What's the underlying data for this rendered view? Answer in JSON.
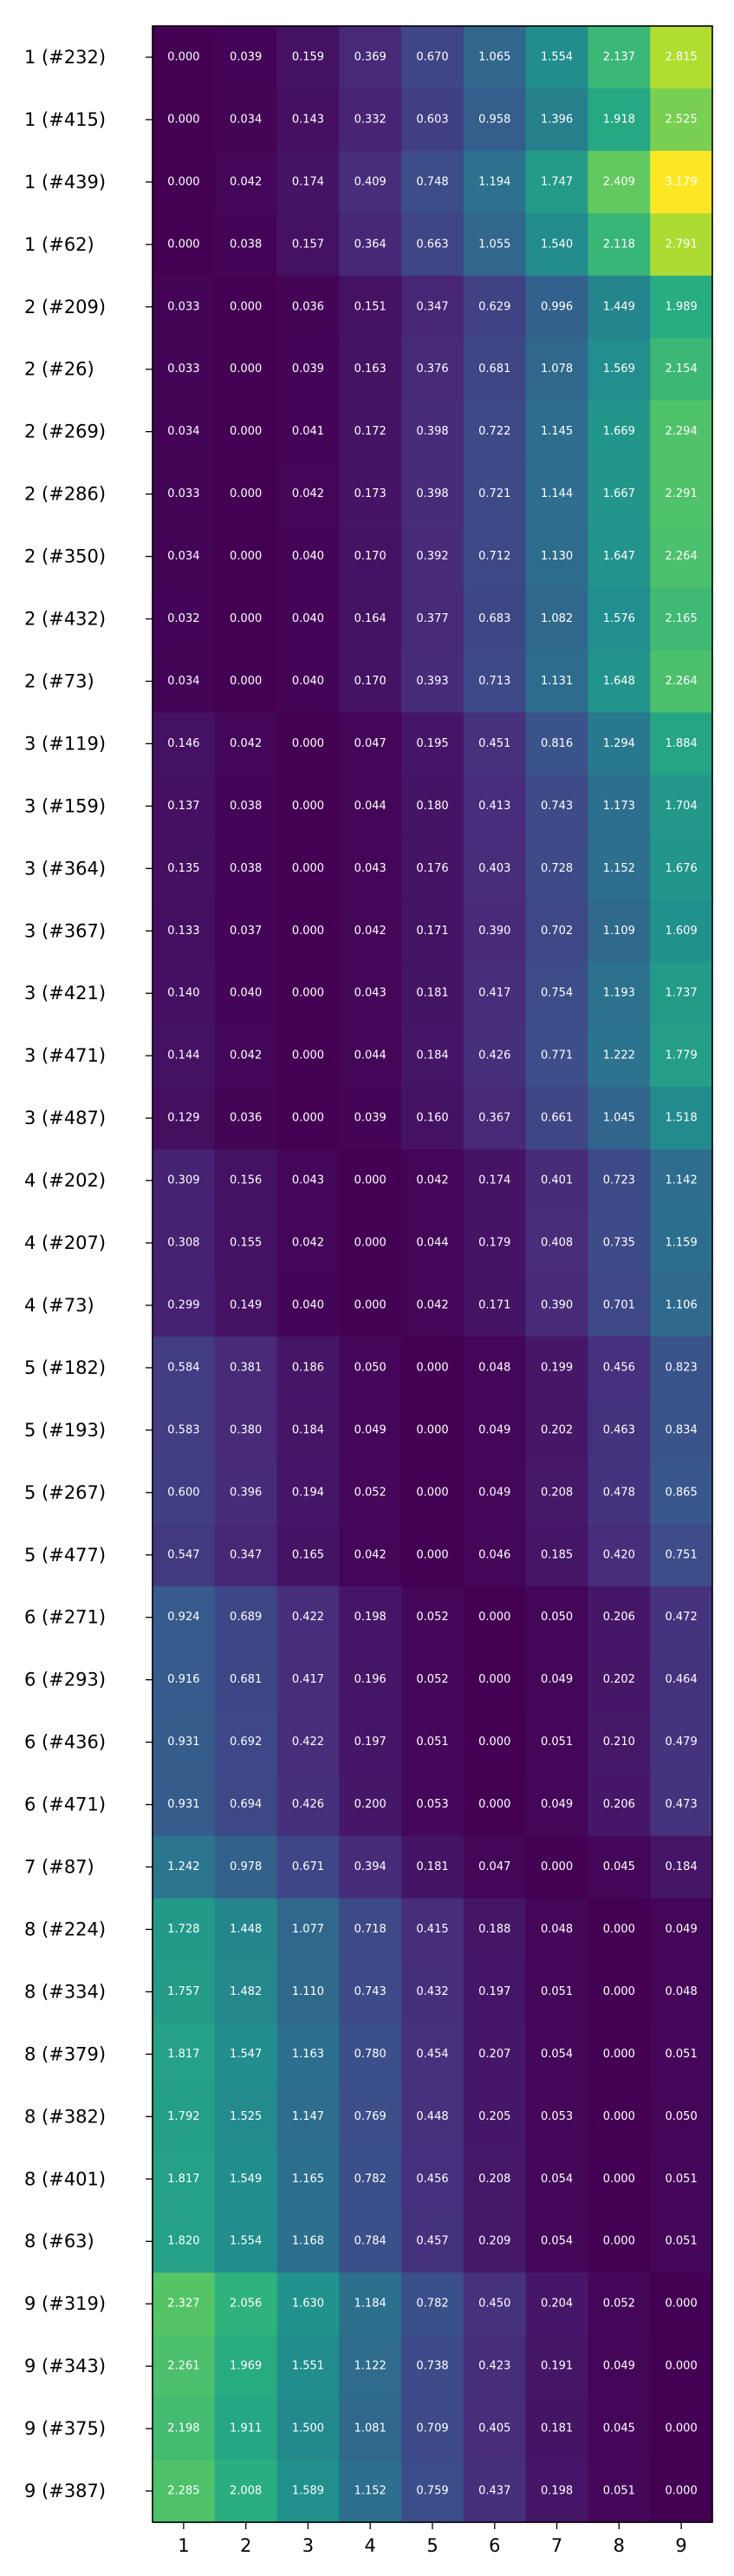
{
  "chart_data": {
    "type": "heatmap",
    "title": "",
    "xlabel": "",
    "ylabel": "",
    "colormap": "viridis",
    "vmin": 0.0,
    "vmax": 3.179,
    "x_categories": [
      "1",
      "2",
      "3",
      "4",
      "5",
      "6",
      "7",
      "8",
      "9"
    ],
    "y_categories": [
      "1 (#232)",
      "1 (#415)",
      "1 (#439)",
      "1 (#62)",
      "2 (#209)",
      "2 (#26)",
      "2 (#269)",
      "2 (#286)",
      "2 (#350)",
      "2 (#432)",
      "2 (#73)",
      "3 (#119)",
      "3 (#159)",
      "3 (#364)",
      "3 (#367)",
      "3 (#421)",
      "3 (#471)",
      "3 (#487)",
      "4 (#202)",
      "4 (#207)",
      "4 (#73)",
      "5 (#182)",
      "5 (#193)",
      "5 (#267)",
      "5 (#477)",
      "6 (#271)",
      "6 (#293)",
      "6 (#436)",
      "6 (#471)",
      "7 (#87)",
      "8 (#224)",
      "8 (#334)",
      "8 (#379)",
      "8 (#382)",
      "8 (#401)",
      "8 (#63)",
      "9 (#319)",
      "9 (#343)",
      "9 (#375)",
      "9 (#387)"
    ],
    "values": [
      [
        0.0,
        0.039,
        0.159,
        0.369,
        0.67,
        1.065,
        1.554,
        2.137,
        2.815
      ],
      [
        0.0,
        0.034,
        0.143,
        0.332,
        0.603,
        0.958,
        1.396,
        1.918,
        2.525
      ],
      [
        0.0,
        0.042,
        0.174,
        0.409,
        0.748,
        1.194,
        1.747,
        2.409,
        3.179
      ],
      [
        0.0,
        0.038,
        0.157,
        0.364,
        0.663,
        1.055,
        1.54,
        2.118,
        2.791
      ],
      [
        0.033,
        0.0,
        0.036,
        0.151,
        0.347,
        0.629,
        0.996,
        1.449,
        1.989
      ],
      [
        0.033,
        0.0,
        0.039,
        0.163,
        0.376,
        0.681,
        1.078,
        1.569,
        2.154
      ],
      [
        0.034,
        0.0,
        0.041,
        0.172,
        0.398,
        0.722,
        1.145,
        1.669,
        2.294
      ],
      [
        0.033,
        0.0,
        0.042,
        0.173,
        0.398,
        0.721,
        1.144,
        1.667,
        2.291
      ],
      [
        0.034,
        0.0,
        0.04,
        0.17,
        0.392,
        0.712,
        1.13,
        1.647,
        2.264
      ],
      [
        0.032,
        0.0,
        0.04,
        0.164,
        0.377,
        0.683,
        1.082,
        1.576,
        2.165
      ],
      [
        0.034,
        0.0,
        0.04,
        0.17,
        0.393,
        0.713,
        1.131,
        1.648,
        2.264
      ],
      [
        0.146,
        0.042,
        0.0,
        0.047,
        0.195,
        0.451,
        0.816,
        1.294,
        1.884
      ],
      [
        0.137,
        0.038,
        0.0,
        0.044,
        0.18,
        0.413,
        0.743,
        1.173,
        1.704
      ],
      [
        0.135,
        0.038,
        0.0,
        0.043,
        0.176,
        0.403,
        0.728,
        1.152,
        1.676
      ],
      [
        0.133,
        0.037,
        0.0,
        0.042,
        0.171,
        0.39,
        0.702,
        1.109,
        1.609
      ],
      [
        0.14,
        0.04,
        0.0,
        0.043,
        0.181,
        0.417,
        0.754,
        1.193,
        1.737
      ],
      [
        0.144,
        0.042,
        0.0,
        0.044,
        0.184,
        0.426,
        0.771,
        1.222,
        1.779
      ],
      [
        0.129,
        0.036,
        0.0,
        0.039,
        0.16,
        0.367,
        0.661,
        1.045,
        1.518
      ],
      [
        0.309,
        0.156,
        0.043,
        0.0,
        0.042,
        0.174,
        0.401,
        0.723,
        1.142
      ],
      [
        0.308,
        0.155,
        0.042,
        0.0,
        0.044,
        0.179,
        0.408,
        0.735,
        1.159
      ],
      [
        0.299,
        0.149,
        0.04,
        0.0,
        0.042,
        0.171,
        0.39,
        0.701,
        1.106
      ],
      [
        0.584,
        0.381,
        0.186,
        0.05,
        0.0,
        0.048,
        0.199,
        0.456,
        0.823
      ],
      [
        0.583,
        0.38,
        0.184,
        0.049,
        0.0,
        0.049,
        0.202,
        0.463,
        0.834
      ],
      [
        0.6,
        0.396,
        0.194,
        0.052,
        0.0,
        0.049,
        0.208,
        0.478,
        0.865
      ],
      [
        0.547,
        0.347,
        0.165,
        0.042,
        0.0,
        0.046,
        0.185,
        0.42,
        0.751
      ],
      [
        0.924,
        0.689,
        0.422,
        0.198,
        0.052,
        0.0,
        0.05,
        0.206,
        0.472
      ],
      [
        0.916,
        0.681,
        0.417,
        0.196,
        0.052,
        0.0,
        0.049,
        0.202,
        0.464
      ],
      [
        0.931,
        0.692,
        0.422,
        0.197,
        0.051,
        0.0,
        0.051,
        0.21,
        0.479
      ],
      [
        0.931,
        0.694,
        0.426,
        0.2,
        0.053,
        0.0,
        0.049,
        0.206,
        0.473
      ],
      [
        1.242,
        0.978,
        0.671,
        0.394,
        0.181,
        0.047,
        0.0,
        0.045,
        0.184
      ],
      [
        1.728,
        1.448,
        1.077,
        0.718,
        0.415,
        0.188,
        0.048,
        0.0,
        0.049
      ],
      [
        1.757,
        1.482,
        1.11,
        0.743,
        0.432,
        0.197,
        0.051,
        0.0,
        0.048
      ],
      [
        1.817,
        1.547,
        1.163,
        0.78,
        0.454,
        0.207,
        0.054,
        0.0,
        0.051
      ],
      [
        1.792,
        1.525,
        1.147,
        0.769,
        0.448,
        0.205,
        0.053,
        0.0,
        0.05
      ],
      [
        1.817,
        1.549,
        1.165,
        0.782,
        0.456,
        0.208,
        0.054,
        0.0,
        0.051
      ],
      [
        1.82,
        1.554,
        1.168,
        0.784,
        0.457,
        0.209,
        0.054,
        0.0,
        0.051
      ],
      [
        2.327,
        2.056,
        1.63,
        1.184,
        0.782,
        0.45,
        0.204,
        0.052,
        0.0
      ],
      [
        2.261,
        1.969,
        1.551,
        1.122,
        0.738,
        0.423,
        0.191,
        0.049,
        0.0
      ],
      [
        2.198,
        1.911,
        1.5,
        1.081,
        0.709,
        0.405,
        0.181,
        0.045,
        0.0
      ],
      [
        2.285,
        2.008,
        1.589,
        1.152,
        0.759,
        0.437,
        0.198,
        0.051,
        0.0
      ]
    ]
  }
}
